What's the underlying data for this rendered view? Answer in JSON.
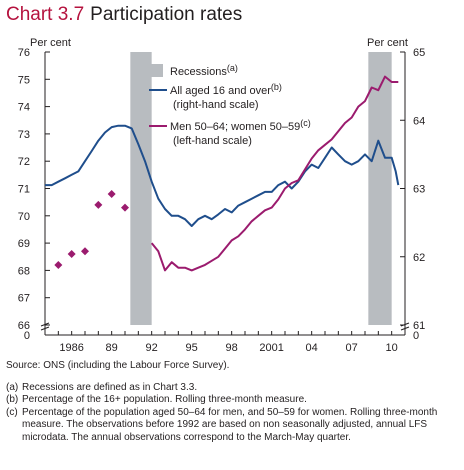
{
  "title": {
    "number": "Chart 3.7",
    "text": "Participation rates"
  },
  "chart_data": {
    "type": "line",
    "left_axis": {
      "label": "Per cent",
      "range": [
        66,
        76
      ],
      "ticks": [
        66,
        67,
        68,
        69,
        70,
        71,
        72,
        73,
        74,
        75,
        76
      ],
      "zero_label": "0"
    },
    "right_axis": {
      "label": "Per cent",
      "range": [
        61,
        65
      ],
      "ticks": [
        61,
        62,
        63,
        64,
        65
      ],
      "zero_label": "0"
    },
    "x_axis": {
      "range": [
        1984,
        2011
      ],
      "tick_labels": [
        "1986",
        "89",
        "92",
        "95",
        "98",
        "2001",
        "04",
        "07",
        "10"
      ],
      "tick_values": [
        1986,
        1989,
        1992,
        1995,
        1998,
        2001,
        2004,
        2007,
        2010
      ]
    },
    "recessions": [
      {
        "start": 1990.4,
        "end": 1992.0
      },
      {
        "start": 2008.25,
        "end": 2010.0
      }
    ],
    "legend": {
      "recessions": "Recessions",
      "recessions_note": "(a)",
      "all_aged": "All aged 16 and over",
      "all_aged_note": "(b)",
      "all_aged_scale": "(right-hand scale)",
      "men_women": "Men 50–64;  women 50–59",
      "men_women_note": "(c)",
      "men_women_scale": "(left-hand scale)"
    },
    "series": [
      {
        "name": "All aged 16 and over",
        "axis": "right",
        "color": "#1f4e8c",
        "points": [
          [
            1984.0,
            63.05
          ],
          [
            1984.5,
            63.05
          ],
          [
            1985.0,
            63.1
          ],
          [
            1985.5,
            63.15
          ],
          [
            1986.0,
            63.2
          ],
          [
            1986.5,
            63.25
          ],
          [
            1987.0,
            63.4
          ],
          [
            1987.5,
            63.55
          ],
          [
            1988.0,
            63.7
          ],
          [
            1988.5,
            63.82
          ],
          [
            1989.0,
            63.9
          ],
          [
            1989.5,
            63.92
          ],
          [
            1990.0,
            63.92
          ],
          [
            1990.5,
            63.88
          ],
          [
            1991.0,
            63.65
          ],
          [
            1991.5,
            63.4
          ],
          [
            1992.0,
            63.1
          ],
          [
            1992.5,
            62.85
          ],
          [
            1993.0,
            62.7
          ],
          [
            1993.5,
            62.6
          ],
          [
            1994.0,
            62.6
          ],
          [
            1994.5,
            62.55
          ],
          [
            1995.0,
            62.45
          ],
          [
            1995.5,
            62.55
          ],
          [
            1996.0,
            62.6
          ],
          [
            1996.5,
            62.55
          ],
          [
            1997.0,
            62.62
          ],
          [
            1997.5,
            62.7
          ],
          [
            1998.0,
            62.65
          ],
          [
            1998.5,
            62.75
          ],
          [
            1999.0,
            62.8
          ],
          [
            1999.5,
            62.85
          ],
          [
            2000.0,
            62.9
          ],
          [
            2000.5,
            62.95
          ],
          [
            2001.0,
            62.95
          ],
          [
            2001.5,
            63.05
          ],
          [
            2002.0,
            63.1
          ],
          [
            2002.5,
            63.0
          ],
          [
            2003.0,
            63.1
          ],
          [
            2003.5,
            63.25
          ],
          [
            2004.0,
            63.35
          ],
          [
            2004.5,
            63.3
          ],
          [
            2005.0,
            63.45
          ],
          [
            2005.5,
            63.6
          ],
          [
            2006.0,
            63.5
          ],
          [
            2006.5,
            63.4
          ],
          [
            2007.0,
            63.35
          ],
          [
            2007.5,
            63.4
          ],
          [
            2008.0,
            63.5
          ],
          [
            2008.5,
            63.4
          ],
          [
            2009.0,
            63.7
          ],
          [
            2009.5,
            63.45
          ],
          [
            2010.0,
            63.45
          ],
          [
            2010.3,
            63.25
          ],
          [
            2010.5,
            63.05
          ]
        ]
      },
      {
        "name": "Men 50–64;  women 50–59",
        "axis": "left",
        "color": "#9b1b6e",
        "annual_points": [
          [
            1985.0,
            68.2
          ],
          [
            1986.0,
            68.6
          ],
          [
            1987.0,
            68.7
          ],
          [
            1988.0,
            70.4
          ],
          [
            1989.0,
            70.8
          ],
          [
            1990.0,
            70.3
          ]
        ],
        "points": [
          [
            1992.0,
            69.0
          ],
          [
            1992.5,
            68.7
          ],
          [
            1993.0,
            68.0
          ],
          [
            1993.5,
            68.3
          ],
          [
            1994.0,
            68.1
          ],
          [
            1994.5,
            68.1
          ],
          [
            1995.0,
            68.0
          ],
          [
            1995.5,
            68.1
          ],
          [
            1996.0,
            68.2
          ],
          [
            1996.5,
            68.35
          ],
          [
            1997.0,
            68.5
          ],
          [
            1997.5,
            68.8
          ],
          [
            1998.0,
            69.1
          ],
          [
            1998.5,
            69.25
          ],
          [
            1999.0,
            69.5
          ],
          [
            1999.5,
            69.8
          ],
          [
            2000.0,
            70.0
          ],
          [
            2000.5,
            70.2
          ],
          [
            2001.0,
            70.3
          ],
          [
            2001.5,
            70.6
          ],
          [
            2002.0,
            71.0
          ],
          [
            2002.5,
            71.2
          ],
          [
            2003.0,
            71.3
          ],
          [
            2003.5,
            71.7
          ],
          [
            2004.0,
            72.1
          ],
          [
            2004.5,
            72.4
          ],
          [
            2005.0,
            72.6
          ],
          [
            2005.5,
            72.8
          ],
          [
            2006.0,
            73.1
          ],
          [
            2006.5,
            73.4
          ],
          [
            2007.0,
            73.6
          ],
          [
            2007.5,
            74.0
          ],
          [
            2008.0,
            74.2
          ],
          [
            2008.5,
            74.7
          ],
          [
            2009.0,
            74.6
          ],
          [
            2009.5,
            75.1
          ],
          [
            2010.0,
            74.9
          ],
          [
            2010.5,
            74.9
          ]
        ]
      }
    ]
  },
  "notes": {
    "source": "Source:  ONS (including the Labour Force Survey).",
    "items": [
      {
        "label": "(a)",
        "text": "Recessions are defined as in Chart 3.3."
      },
      {
        "label": "(b)",
        "text": "Percentage of the 16+ population.  Rolling three-month measure."
      },
      {
        "label": "(c)",
        "text": "Percentage of the population aged 50–64 for men, and 50–59 for women.  Rolling three-month measure.  The observations before 1992 are based on non seasonally adjusted, annual LFS microdata.  The annual observations correspond to the March-May quarter."
      }
    ]
  }
}
